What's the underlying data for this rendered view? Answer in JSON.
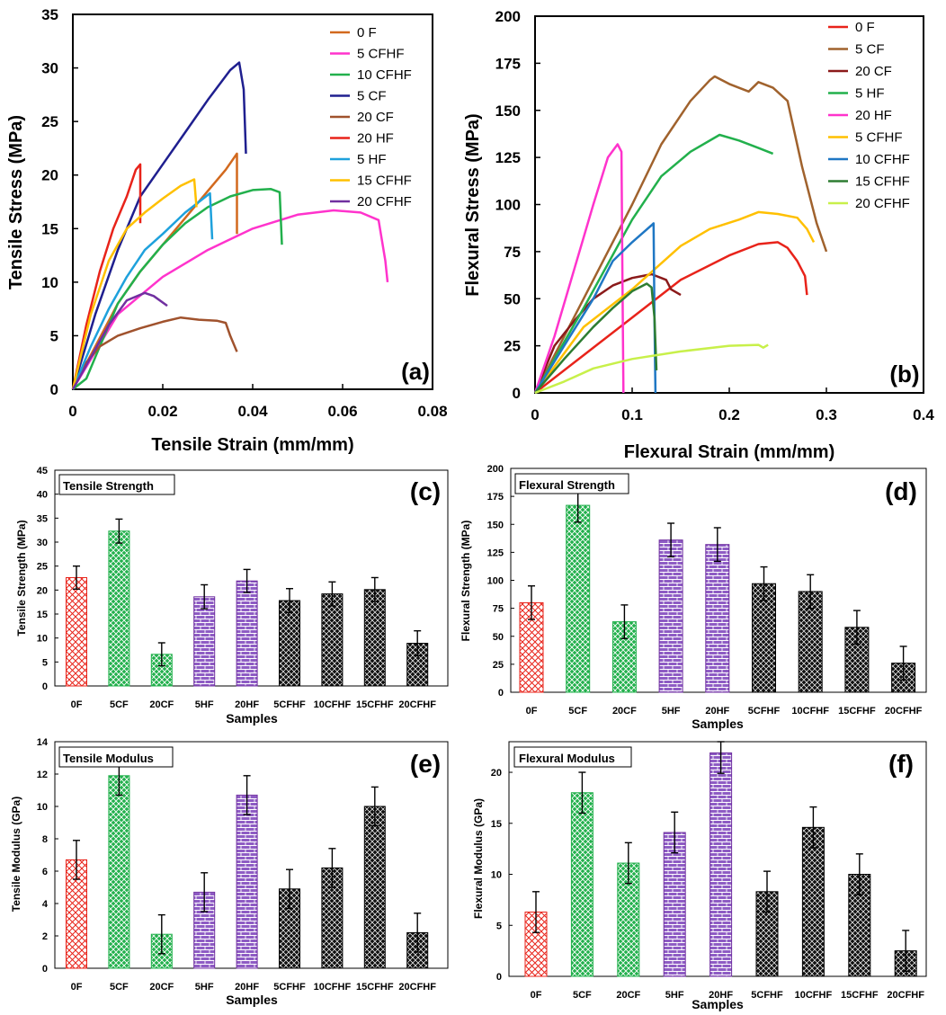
{
  "chart_data": [
    {
      "id": "a",
      "type": "line",
      "tag": "(a)",
      "xlabel": "Tensile Strain (mm/mm)",
      "ylabel": "Tensile Stress (MPa)",
      "xlim": [
        0,
        0.08
      ],
      "ylim": [
        0,
        35
      ],
      "xticks": [
        "0",
        "0.02",
        "0.04",
        "0.06",
        "0.08"
      ],
      "xtick_values": [
        0,
        0.02,
        0.04,
        0.06,
        0.08
      ],
      "yticks": [
        "0",
        "5",
        "10",
        "15",
        "20",
        "25",
        "30",
        "35"
      ],
      "ytick_values": [
        0,
        5,
        10,
        15,
        20,
        25,
        30,
        35
      ],
      "legend_position": "top-right",
      "series": [
        {
          "name": "0   F",
          "color": "#D2691E",
          "points": [
            [
              0,
              0
            ],
            [
              0.005,
              4
            ],
            [
              0.01,
              8
            ],
            [
              0.015,
              11
            ],
            [
              0.02,
              13.5
            ],
            [
              0.025,
              16
            ],
            [
              0.03,
              18.5
            ],
            [
              0.034,
              20.5
            ],
            [
              0.0365,
              22
            ],
            [
              0.0365,
              14.5
            ]
          ]
        },
        {
          "name": "5   CFHF",
          "color": "#FF33CC",
          "points": [
            [
              0,
              0
            ],
            [
              0.01,
              7
            ],
            [
              0.02,
              10.5
            ],
            [
              0.03,
              13
            ],
            [
              0.04,
              15
            ],
            [
              0.05,
              16.3
            ],
            [
              0.058,
              16.7
            ],
            [
              0.064,
              16.5
            ],
            [
              0.068,
              15.8
            ],
            [
              0.0695,
              12
            ],
            [
              0.07,
              10
            ]
          ]
        },
        {
          "name": "10  CFHF",
          "color": "#22B04C",
          "points": [
            [
              0,
              0
            ],
            [
              0.003,
              1
            ],
            [
              0.006,
              4
            ],
            [
              0.01,
              8
            ],
            [
              0.015,
              11
            ],
            [
              0.02,
              13.5
            ],
            [
              0.025,
              15.5
            ],
            [
              0.03,
              17
            ],
            [
              0.035,
              18
            ],
            [
              0.04,
              18.6
            ],
            [
              0.044,
              18.7
            ],
            [
              0.046,
              18.4
            ],
            [
              0.0465,
              13.5
            ]
          ]
        },
        {
          "name": "5   CF",
          "color": "#1F1F8F",
          "points": [
            [
              0,
              0
            ],
            [
              0.005,
              7
            ],
            [
              0.01,
              13
            ],
            [
              0.015,
              18
            ],
            [
              0.02,
              21
            ],
            [
              0.025,
              24
            ],
            [
              0.03,
              27
            ],
            [
              0.035,
              29.8
            ],
            [
              0.037,
              30.5
            ],
            [
              0.038,
              28
            ],
            [
              0.0385,
              22
            ]
          ]
        },
        {
          "name": "20  CF",
          "color": "#A0522D",
          "points": [
            [
              0,
              0
            ],
            [
              0.003,
              2.5
            ],
            [
              0.006,
              4
            ],
            [
              0.01,
              5
            ],
            [
              0.015,
              5.7
            ],
            [
              0.02,
              6.3
            ],
            [
              0.024,
              6.7
            ],
            [
              0.028,
              6.5
            ],
            [
              0.032,
              6.4
            ],
            [
              0.034,
              6.2
            ],
            [
              0.035,
              5
            ],
            [
              0.0365,
              3.5
            ]
          ]
        },
        {
          "name": "20  HF",
          "color": "#E8231A",
          "points": [
            [
              0,
              0
            ],
            [
              0.003,
              6
            ],
            [
              0.006,
              11
            ],
            [
              0.009,
              15
            ],
            [
              0.012,
              18
            ],
            [
              0.014,
              20.5
            ],
            [
              0.015,
              21
            ],
            [
              0.015,
              15.5
            ]
          ]
        },
        {
          "name": "5    HF",
          "color": "#1EA1DC",
          "points": [
            [
              0,
              0
            ],
            [
              0.004,
              4
            ],
            [
              0.008,
              7.5
            ],
            [
              0.012,
              10.5
            ],
            [
              0.016,
              13
            ],
            [
              0.02,
              14.5
            ],
            [
              0.025,
              16.5
            ],
            [
              0.029,
              17.8
            ],
            [
              0.0305,
              18.3
            ],
            [
              0.031,
              14
            ]
          ]
        },
        {
          "name": "15  CFHF",
          "color": "#FFC000",
          "points": [
            [
              0,
              0
            ],
            [
              0.004,
              7
            ],
            [
              0.008,
              12
            ],
            [
              0.012,
              15
            ],
            [
              0.016,
              16.5
            ],
            [
              0.02,
              17.8
            ],
            [
              0.024,
              19
            ],
            [
              0.027,
              19.6
            ],
            [
              0.0275,
              17
            ]
          ]
        },
        {
          "name": "20  CFHF",
          "color": "#7030A0",
          "points": [
            [
              0,
              0
            ],
            [
              0.004,
              3
            ],
            [
              0.008,
              6
            ],
            [
              0.012,
              8.3
            ],
            [
              0.016,
              9
            ],
            [
              0.018,
              8.7
            ],
            [
              0.021,
              7.8
            ]
          ]
        }
      ]
    },
    {
      "id": "b",
      "type": "line",
      "tag": "(b)",
      "xlabel": "Flexural Strain (mm/mm)",
      "ylabel": "Flexural Stress (MPa)",
      "xlim": [
        0,
        0.4
      ],
      "ylim": [
        0,
        200
      ],
      "xticks": [
        "0",
        "0.1",
        "0.2",
        "0.3",
        "0.4"
      ],
      "xtick_values": [
        0,
        0.1,
        0.2,
        0.3,
        0.4
      ],
      "yticks": [
        "0",
        "25",
        "50",
        "75",
        "100",
        "125",
        "150",
        "175",
        "200"
      ],
      "ytick_values": [
        0,
        25,
        50,
        75,
        100,
        125,
        150,
        175,
        200
      ],
      "legend_position": "top-right",
      "series": [
        {
          "name": "0    F",
          "color": "#E8231A",
          "points": [
            [
              0,
              0
            ],
            [
              0.05,
              20
            ],
            [
              0.1,
              40
            ],
            [
              0.15,
              60
            ],
            [
              0.2,
              73
            ],
            [
              0.23,
              79
            ],
            [
              0.25,
              80
            ],
            [
              0.26,
              77
            ],
            [
              0.27,
              70
            ],
            [
              0.278,
              62
            ],
            [
              0.28,
              52
            ]
          ]
        },
        {
          "name": "5    CF",
          "color": "#A0622D",
          "points": [
            [
              0,
              0
            ],
            [
              0.05,
              50
            ],
            [
              0.1,
              100
            ],
            [
              0.13,
              132
            ],
            [
              0.16,
              155
            ],
            [
              0.18,
              166
            ],
            [
              0.185,
              168
            ],
            [
              0.2,
              164
            ],
            [
              0.22,
              160
            ],
            [
              0.23,
              165
            ],
            [
              0.245,
              162
            ],
            [
              0.26,
              155
            ],
            [
              0.275,
              120
            ],
            [
              0.29,
              90
            ],
            [
              0.3,
              75
            ]
          ]
        },
        {
          "name": "20  CF",
          "color": "#8B1A1A",
          "points": [
            [
              0,
              0
            ],
            [
              0.02,
              25
            ],
            [
              0.04,
              38
            ],
            [
              0.06,
              50
            ],
            [
              0.08,
              57
            ],
            [
              0.1,
              61
            ],
            [
              0.11,
              62
            ],
            [
              0.12,
              63
            ],
            [
              0.135,
              60
            ],
            [
              0.14,
              55
            ],
            [
              0.15,
              52
            ]
          ]
        },
        {
          "name": "5    HF",
          "color": "#22B04C",
          "points": [
            [
              0,
              0
            ],
            [
              0.05,
              45
            ],
            [
              0.1,
              92
            ],
            [
              0.13,
              115
            ],
            [
              0.16,
              128
            ],
            [
              0.19,
              137
            ],
            [
              0.21,
              134
            ],
            [
              0.23,
              130
            ],
            [
              0.245,
              127
            ]
          ]
        },
        {
          "name": "20  HF",
          "color": "#FF33CC",
          "points": [
            [
              0,
              0
            ],
            [
              0.02,
              30
            ],
            [
              0.04,
              65
            ],
            [
              0.06,
              100
            ],
            [
              0.075,
              125
            ],
            [
              0.085,
              132
            ],
            [
              0.089,
              128
            ],
            [
              0.09,
              60
            ],
            [
              0.091,
              0
            ]
          ]
        },
        {
          "name": "5    CFHF",
          "color": "#FFC000",
          "points": [
            [
              0,
              0
            ],
            [
              0.05,
              35
            ],
            [
              0.1,
              55
            ],
            [
              0.15,
              78
            ],
            [
              0.18,
              87
            ],
            [
              0.21,
              92
            ],
            [
              0.23,
              96
            ],
            [
              0.25,
              95
            ],
            [
              0.27,
              93
            ],
            [
              0.28,
              87
            ],
            [
              0.287,
              80
            ]
          ]
        },
        {
          "name": "10  CFHF",
          "color": "#1F77C4",
          "points": [
            [
              0,
              0
            ],
            [
              0.03,
              25
            ],
            [
              0.06,
              50
            ],
            [
              0.08,
              70
            ],
            [
              0.1,
              80
            ],
            [
              0.12,
              89
            ],
            [
              0.122,
              90
            ],
            [
              0.123,
              40
            ],
            [
              0.124,
              0
            ]
          ]
        },
        {
          "name": "15  CFHF",
          "color": "#2E7D32",
          "points": [
            [
              0,
              0
            ],
            [
              0.03,
              18
            ],
            [
              0.06,
              35
            ],
            [
              0.08,
              45
            ],
            [
              0.1,
              54
            ],
            [
              0.115,
              58
            ],
            [
              0.12,
              56
            ],
            [
              0.123,
              40
            ],
            [
              0.125,
              12
            ]
          ]
        },
        {
          "name": "20  CFHF",
          "color": "#C8F04A",
          "points": [
            [
              0,
              0
            ],
            [
              0.03,
              6
            ],
            [
              0.06,
              13
            ],
            [
              0.1,
              18
            ],
            [
              0.15,
              22
            ],
            [
              0.2,
              25
            ],
            [
              0.23,
              25.5
            ],
            [
              0.235,
              24
            ],
            [
              0.24,
              25.5
            ]
          ]
        }
      ]
    },
    {
      "id": "c",
      "type": "bar",
      "inner_label": "Tensile Strength",
      "tag": "(c)",
      "xlabel": "Samples",
      "ylabel": "Tensile Strength (MPa)",
      "ylim": [
        0,
        45
      ],
      "yticks": [
        "0",
        "5",
        "10",
        "15",
        "20",
        "25",
        "30",
        "35",
        "40",
        "45"
      ],
      "ytick_values": [
        0,
        5,
        10,
        15,
        20,
        25,
        30,
        35,
        40,
        45
      ],
      "categories": [
        "0F",
        "5CF",
        "20CF",
        "5HF",
        "20HF",
        "5CFHF",
        "10CFHF",
        "15CFHF",
        "20CFHF"
      ],
      "values": [
        22.6,
        32.3,
        6.6,
        18.6,
        21.9,
        17.8,
        19.2,
        20.1,
        8.9
      ],
      "errors": [
        2.4,
        2.5,
        2.4,
        2.5,
        2.4,
        2.5,
        2.5,
        2.5,
        2.6
      ]
    },
    {
      "id": "d",
      "type": "bar",
      "inner_label": "Flexural Strength",
      "tag": "(d)",
      "xlabel": "Samples",
      "ylabel": "Flexural Strength (MPa)",
      "ylim": [
        0,
        200
      ],
      "yticks": [
        "0",
        "25",
        "50",
        "75",
        "100",
        "125",
        "150",
        "175",
        "200"
      ],
      "ytick_values": [
        0,
        25,
        50,
        75,
        100,
        125,
        150,
        175,
        200
      ],
      "categories": [
        "0F",
        "5CF",
        "20CF",
        "5HF",
        "20HF",
        "5CFHF",
        "10CFHF",
        "15CFHF",
        "20CFHF"
      ],
      "values": [
        80,
        167,
        63,
        136,
        132,
        97,
        90,
        58,
        26
      ],
      "errors": [
        15,
        15,
        15,
        15,
        15,
        15,
        15,
        15,
        15
      ]
    },
    {
      "id": "e",
      "type": "bar",
      "inner_label": "Tensile Modulus",
      "tag": "(e)",
      "xlabel": "Samples",
      "ylabel": "Tensile Modulus (GPa)",
      "ylim": [
        0,
        14
      ],
      "yticks": [
        "0",
        "2",
        "4",
        "6",
        "8",
        "10",
        "12",
        "14"
      ],
      "ytick_values": [
        0,
        2,
        4,
        6,
        8,
        10,
        12,
        14
      ],
      "categories": [
        "0F",
        "5CF",
        "20CF",
        "5HF",
        "20HF",
        "5CFHF",
        "10CFHF",
        "15CFHF",
        "20CFHF"
      ],
      "values": [
        6.7,
        11.9,
        2.1,
        4.7,
        10.7,
        4.9,
        6.2,
        10.0,
        2.2
      ],
      "errors": [
        1.2,
        1.2,
        1.2,
        1.2,
        1.2,
        1.2,
        1.2,
        1.2,
        1.2
      ]
    },
    {
      "id": "f",
      "type": "bar",
      "inner_label": "Flexural Modulus",
      "tag": "(f)",
      "xlabel": "Samples",
      "ylabel": "Flexural Modulus (GPa)",
      "ylim": [
        0,
        23
      ],
      "yticks": [
        "0",
        "5",
        "10",
        "15",
        "20"
      ],
      "ytick_values": [
        0,
        5,
        10,
        15,
        20
      ],
      "categories": [
        "0F",
        "5CF",
        "20CF",
        "5HF",
        "20HF",
        "5CFHF",
        "10CFHF",
        "15CFHF",
        "20CFHF"
      ],
      "values": [
        6.3,
        18.0,
        11.1,
        14.1,
        21.9,
        8.3,
        14.6,
        10.0,
        2.5
      ],
      "errors": [
        2.0,
        2.0,
        2.0,
        2.0,
        2.0,
        2.0,
        2.0,
        2.0,
        2.0
      ]
    }
  ],
  "colors": {
    "bar_F": "#E8231A",
    "bar_CF": "#22B04C",
    "bar_HF": "#7030A0",
    "bar_CFHF": "#000000"
  }
}
